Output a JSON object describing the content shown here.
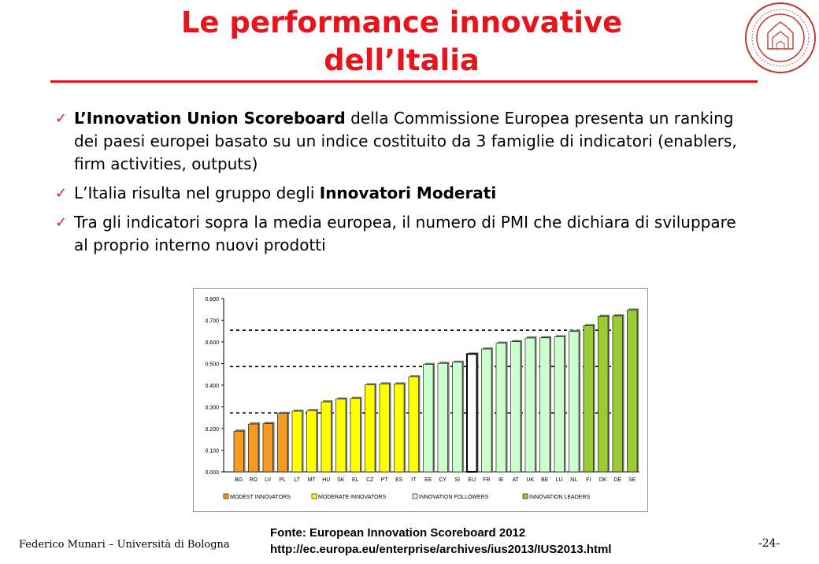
{
  "slide": {
    "title_line1": "Le performance innovative",
    "title_line2": "dell’Italia",
    "accent_color": "#e8141b",
    "logo_icon": "alma-mater-seal-icon",
    "bullets": [
      [
        {
          "text": "L’Innovation Union Scoreboard",
          "bold": true
        },
        {
          "text": " della Commissione Europea presenta un ranking dei paesi europei basato su un indice costituito da 3 famiglie di indicatori (enablers, firm activities, outputs)",
          "bold": false
        }
      ],
      [
        {
          "text": "L’Italia risulta nel gruppo degli ",
          "bold": false
        },
        {
          "text": "Innovatori Moderati",
          "bold": true
        }
      ],
      [
        {
          "text": "Tra gli indicatori sopra la media europea, il numero di PMI che dichiara di sviluppare al proprio interno nuovi prodotti",
          "bold": false
        }
      ]
    ],
    "footer_author": "Federico Munari – Università di Bologna",
    "source_line1": "Fonte: European Innovation Scoreboard 2012",
    "source_line2": "http://ec.europa.eu/enterprise/archives/ius2013/IUS2013.html",
    "page_number": "-24-"
  },
  "chart_data": {
    "type": "bar",
    "title": "",
    "xlabel": "",
    "ylabel": "",
    "ylim": [
      0,
      0.8
    ],
    "yticks": [
      "0.000",
      "0.100",
      "0.200",
      "0.300",
      "0.400",
      "0.500",
      "0.600",
      "0.700",
      "0.800"
    ],
    "categories": [
      "BG",
      "RO",
      "LV",
      "PL",
      "LT",
      "MT",
      "HU",
      "SK",
      "EL",
      "CZ",
      "PT",
      "ES",
      "IT",
      "EE",
      "CY",
      "SI",
      "EU",
      "FR",
      "IE",
      "AT",
      "UK",
      "BE",
      "LU",
      "NL",
      "FI",
      "DK",
      "DE",
      "SE"
    ],
    "values": [
      0.188,
      0.221,
      0.223,
      0.27,
      0.28,
      0.283,
      0.323,
      0.336,
      0.339,
      0.402,
      0.406,
      0.406,
      0.439,
      0.496,
      0.501,
      0.506,
      0.544,
      0.567,
      0.594,
      0.601,
      0.618,
      0.619,
      0.624,
      0.648,
      0.675,
      0.718,
      0.72,
      0.747
    ],
    "groups": [
      "modest",
      "modest",
      "modest",
      "modest",
      "moderate",
      "moderate",
      "moderate",
      "moderate",
      "moderate",
      "moderate",
      "moderate",
      "moderate",
      "moderate",
      "follower",
      "follower",
      "follower",
      "eu",
      "follower",
      "follower",
      "follower",
      "follower",
      "follower",
      "follower",
      "follower",
      "leader",
      "leader",
      "leader",
      "leader"
    ],
    "group_colors": {
      "modest": "#f59a23",
      "moderate": "#ffff00",
      "follower": "#ccffcc",
      "eu": "#ffffff",
      "leader": "#99cc33"
    },
    "thresholds": [
      0.272,
      0.486,
      0.654
    ],
    "legend": [
      {
        "name": "MODEST INNOVATORS",
        "group": "modest"
      },
      {
        "name": "MODERATE INNOVATORS",
        "group": "moderate"
      },
      {
        "name": "INNOVATION FOLLOWERS",
        "group": "follower"
      },
      {
        "name": "INNOVATION LEADERS",
        "group": "leader"
      }
    ],
    "legend_position": "bottom",
    "grid": false
  }
}
